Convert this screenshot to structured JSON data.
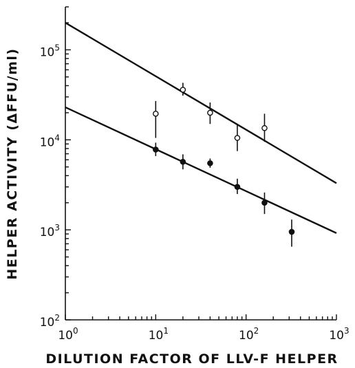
{
  "chart_data": {
    "type": "scatter",
    "xlabel": "DILUTION FACTOR OF LLV-F HELPER",
    "ylabel": "HELPER ACTIVITY (ΔFFU/ml)",
    "x_scale": "log",
    "y_scale": "log",
    "xlim": [
      1,
      1000
    ],
    "ylim": [
      100,
      300000
    ],
    "x_ticks": [
      {
        "value": 1,
        "base": "10",
        "exp": "0"
      },
      {
        "value": 10,
        "base": "10",
        "exp": "1"
      },
      {
        "value": 100,
        "base": "10",
        "exp": "2"
      },
      {
        "value": 1000,
        "base": "10",
        "exp": "3"
      }
    ],
    "y_ticks": [
      {
        "value": 100,
        "base": "10",
        "exp": "2"
      },
      {
        "value": 1000,
        "base": "10",
        "exp": "3"
      },
      {
        "value": 10000,
        "base": "10",
        "exp": "4"
      },
      {
        "value": 100000,
        "base": "10",
        "exp": "5"
      }
    ],
    "grid": false,
    "series": [
      {
        "marker": "open-circle",
        "points": [
          {
            "x": 10,
            "y": 19500,
            "err_lo": 10500,
            "err_hi": 27000
          },
          {
            "x": 20,
            "y": 36000,
            "err_lo": 31000,
            "err_hi": 43000
          },
          {
            "x": 40,
            "y": 20000,
            "err_lo": 15000,
            "err_hi": 26000
          },
          {
            "x": 80,
            "y": 10500,
            "err_lo": 7500,
            "err_hi": 15000
          },
          {
            "x": 160,
            "y": 13500,
            "err_lo": 9500,
            "err_hi": 19500
          }
        ],
        "fit_line": [
          {
            "x": 1,
            "y": 200000
          },
          {
            "x": 1000,
            "y": 3300
          }
        ]
      },
      {
        "marker": "filled-circle",
        "points": [
          {
            "x": 10,
            "y": 7800,
            "err_lo": 6600,
            "err_hi": 9300
          },
          {
            "x": 20,
            "y": 5700,
            "err_lo": 4700,
            "err_hi": 6900
          },
          {
            "x": 40,
            "y": 5500,
            "err_lo": 4900,
            "err_hi": 6200
          },
          {
            "x": 80,
            "y": 3000,
            "err_lo": 2500,
            "err_hi": 3700
          },
          {
            "x": 160,
            "y": 2000,
            "err_lo": 1500,
            "err_hi": 2600
          },
          {
            "x": 320,
            "y": 950,
            "err_lo": 650,
            "err_hi": 1300
          }
        ],
        "fit_line": [
          {
            "x": 1,
            "y": 23000
          },
          {
            "x": 1000,
            "y": 920
          }
        ]
      }
    ]
  }
}
